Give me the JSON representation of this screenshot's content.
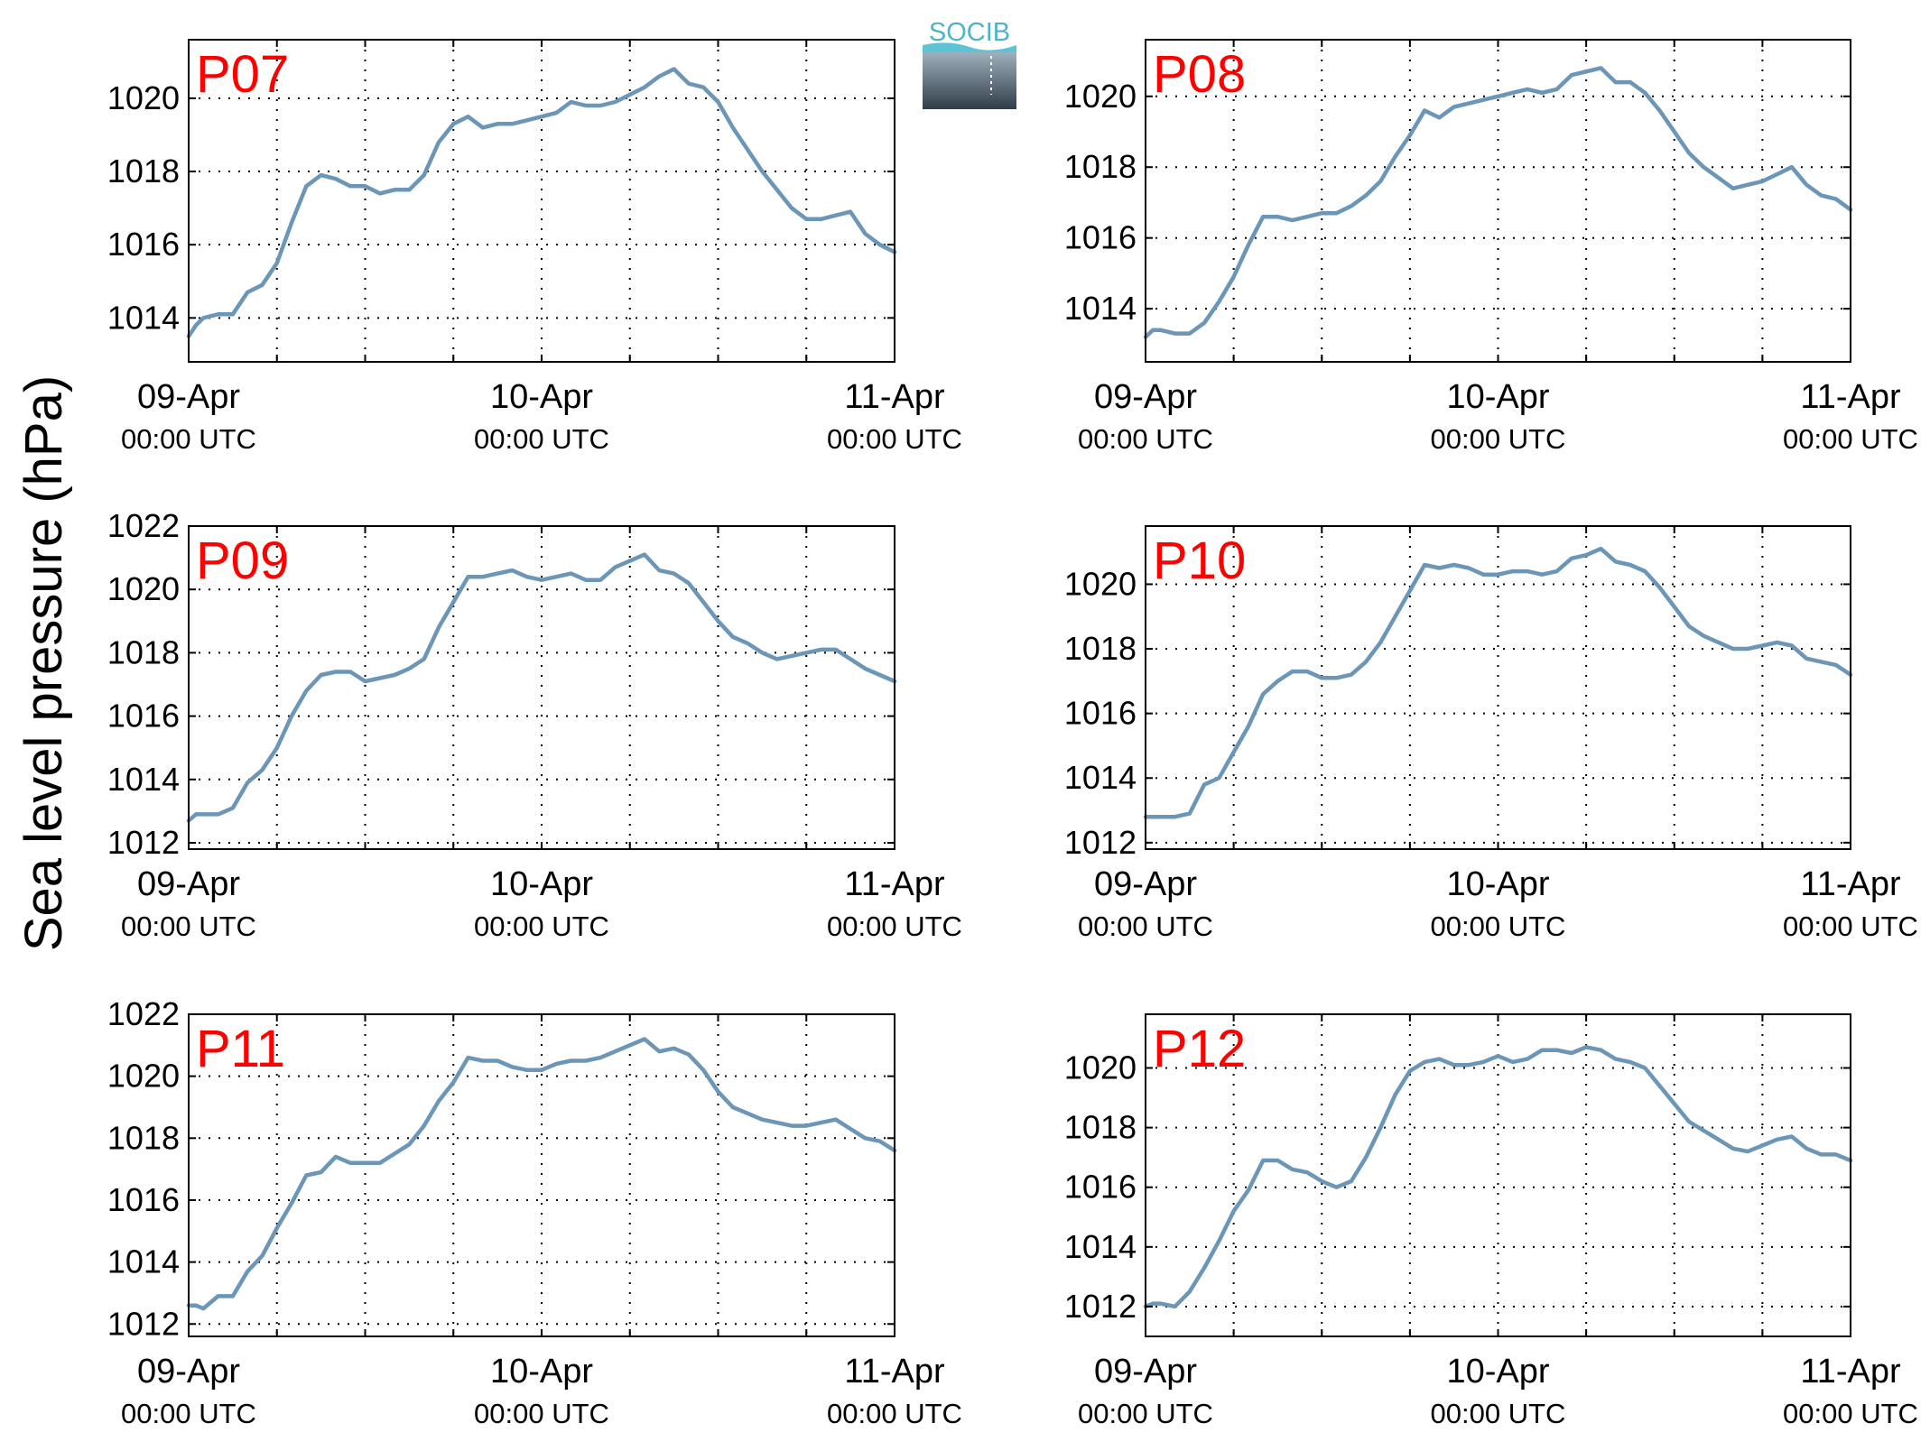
{
  "figure": {
    "ylabel": "Sea level pressure (hPa)",
    "logo_text": "SOCIB",
    "colors": {
      "line": "#6b96b7",
      "title": "#ff0000",
      "grid": "#000000"
    }
  },
  "chart_data": [
    {
      "type": "line",
      "title": "P07",
      "x_ticks": [
        {
          "line1": "09-Apr",
          "line2": "00:00 UTC"
        },
        {
          "line1": "10-Apr",
          "line2": "00:00 UTC"
        },
        {
          "line1": "11-Apr",
          "line2": "00:00 UTC"
        }
      ],
      "x_range_hours": [
        0,
        48
      ],
      "ylim": [
        1012.8,
        1021.6
      ],
      "y_ticks": [
        1014,
        1016,
        1018,
        1020
      ],
      "grid": true,
      "x": [
        0,
        0.5,
        1,
        2,
        3,
        4,
        5,
        6,
        7,
        8,
        9,
        10,
        11,
        12,
        13,
        14,
        15,
        16,
        17,
        18,
        19,
        20,
        21,
        22,
        23,
        24,
        25,
        26,
        27,
        28,
        29,
        30,
        31,
        32,
        33,
        34,
        35,
        36,
        37,
        38,
        39,
        40,
        41,
        42,
        43,
        44,
        45,
        46,
        47,
        48
      ],
      "y": [
        1013.5,
        1013.8,
        1014.0,
        1014.1,
        1014.1,
        1014.7,
        1014.9,
        1015.5,
        1016.6,
        1017.6,
        1017.9,
        1017.8,
        1017.6,
        1017.6,
        1017.4,
        1017.5,
        1017.5,
        1017.9,
        1018.8,
        1019.3,
        1019.5,
        1019.2,
        1019.3,
        1019.3,
        1019.4,
        1019.5,
        1019.6,
        1019.9,
        1019.8,
        1019.8,
        1019.9,
        1020.1,
        1020.3,
        1020.6,
        1020.8,
        1020.4,
        1020.3,
        1019.9,
        1019.2,
        1018.6,
        1018.0,
        1017.5,
        1017.0,
        1016.7,
        1016.7,
        1016.8,
        1016.9,
        1016.3,
        1016.0,
        1015.8
      ]
    },
    {
      "type": "line",
      "title": "P08",
      "x_ticks": [
        {
          "line1": "09-Apr",
          "line2": "00:00 UTC"
        },
        {
          "line1": "10-Apr",
          "line2": "00:00 UTC"
        },
        {
          "line1": "11-Apr",
          "line2": "00:00 UTC"
        }
      ],
      "x_range_hours": [
        0,
        48
      ],
      "ylim": [
        1012.5,
        1021.6
      ],
      "y_ticks": [
        1014,
        1016,
        1018,
        1020
      ],
      "grid": true,
      "x": [
        0,
        0.5,
        1,
        2,
        3,
        4,
        5,
        6,
        7,
        8,
        9,
        10,
        11,
        12,
        13,
        14,
        15,
        16,
        17,
        18,
        19,
        20,
        21,
        22,
        23,
        24,
        25,
        26,
        27,
        28,
        29,
        30,
        31,
        32,
        33,
        34,
        35,
        36,
        37,
        38,
        39,
        40,
        41,
        42,
        43,
        44,
        45,
        46,
        47,
        48
      ],
      "y": [
        1013.2,
        1013.4,
        1013.4,
        1013.3,
        1013.3,
        1013.6,
        1014.2,
        1014.9,
        1015.8,
        1016.6,
        1016.6,
        1016.5,
        1016.6,
        1016.7,
        1016.7,
        1016.9,
        1017.2,
        1017.6,
        1018.3,
        1018.9,
        1019.6,
        1019.4,
        1019.7,
        1019.8,
        1019.9,
        1020.0,
        1020.1,
        1020.2,
        1020.1,
        1020.2,
        1020.6,
        1020.7,
        1020.8,
        1020.4,
        1020.4,
        1020.1,
        1019.6,
        1019.0,
        1018.4,
        1018.0,
        1017.7,
        1017.4,
        1017.5,
        1017.6,
        1017.8,
        1018.0,
        1017.5,
        1017.2,
        1017.1,
        1016.8
      ]
    },
    {
      "type": "line",
      "title": "P09",
      "x_ticks": [
        {
          "line1": "09-Apr",
          "line2": "00:00 UTC"
        },
        {
          "line1": "10-Apr",
          "line2": "00:00 UTC"
        },
        {
          "line1": "11-Apr",
          "line2": "00:00 UTC"
        }
      ],
      "x_range_hours": [
        0,
        48
      ],
      "ylim": [
        1011.8,
        1022.0
      ],
      "y_ticks": [
        1012,
        1014,
        1016,
        1018,
        1020,
        1022
      ],
      "grid": true,
      "x": [
        0,
        0.5,
        1,
        2,
        3,
        4,
        5,
        6,
        7,
        8,
        9,
        10,
        11,
        12,
        13,
        14,
        15,
        16,
        17,
        18,
        19,
        20,
        21,
        22,
        23,
        24,
        25,
        26,
        27,
        28,
        29,
        30,
        31,
        32,
        33,
        34,
        35,
        36,
        37,
        38,
        39,
        40,
        41,
        42,
        43,
        44,
        45,
        46,
        47,
        48
      ],
      "y": [
        1012.7,
        1012.9,
        1012.9,
        1012.9,
        1013.1,
        1013.9,
        1014.3,
        1015.0,
        1016.0,
        1016.8,
        1017.3,
        1017.4,
        1017.4,
        1017.1,
        1017.2,
        1017.3,
        1017.5,
        1017.8,
        1018.8,
        1019.6,
        1020.4,
        1020.4,
        1020.5,
        1020.6,
        1020.4,
        1020.3,
        1020.4,
        1020.5,
        1020.3,
        1020.3,
        1020.7,
        1020.9,
        1021.1,
        1020.6,
        1020.5,
        1020.2,
        1019.6,
        1019.0,
        1018.5,
        1018.3,
        1018.0,
        1017.8,
        1017.9,
        1018.0,
        1018.1,
        1018.1,
        1017.8,
        1017.5,
        1017.3,
        1017.1
      ]
    },
    {
      "type": "line",
      "title": "P10",
      "x_ticks": [
        {
          "line1": "09-Apr",
          "line2": "00:00 UTC"
        },
        {
          "line1": "10-Apr",
          "line2": "00:00 UTC"
        },
        {
          "line1": "11-Apr",
          "line2": "00:00 UTC"
        }
      ],
      "x_range_hours": [
        0,
        48
      ],
      "ylim": [
        1011.8,
        1021.8
      ],
      "y_ticks": [
        1012,
        1014,
        1016,
        1018,
        1020
      ],
      "grid": true,
      "x": [
        0,
        0.5,
        1,
        2,
        3,
        4,
        5,
        6,
        7,
        8,
        9,
        10,
        11,
        12,
        13,
        14,
        15,
        16,
        17,
        18,
        19,
        20,
        21,
        22,
        23,
        24,
        25,
        26,
        27,
        28,
        29,
        30,
        31,
        32,
        33,
        34,
        35,
        36,
        37,
        38,
        39,
        40,
        41,
        42,
        43,
        44,
        45,
        46,
        47,
        48
      ],
      "y": [
        1012.8,
        1012.8,
        1012.8,
        1012.8,
        1012.9,
        1013.8,
        1014.0,
        1014.8,
        1015.6,
        1016.6,
        1017.0,
        1017.3,
        1017.3,
        1017.1,
        1017.1,
        1017.2,
        1017.6,
        1018.2,
        1019.0,
        1019.8,
        1020.6,
        1020.5,
        1020.6,
        1020.5,
        1020.3,
        1020.3,
        1020.4,
        1020.4,
        1020.3,
        1020.4,
        1020.8,
        1020.9,
        1021.1,
        1020.7,
        1020.6,
        1020.4,
        1019.9,
        1019.3,
        1018.7,
        1018.4,
        1018.2,
        1018.0,
        1018.0,
        1018.1,
        1018.2,
        1018.1,
        1017.7,
        1017.6,
        1017.5,
        1017.2
      ]
    },
    {
      "type": "line",
      "title": "P11",
      "x_ticks": [
        {
          "line1": "09-Apr",
          "line2": "00:00 UTC"
        },
        {
          "line1": "10-Apr",
          "line2": "00:00 UTC"
        },
        {
          "line1": "11-Apr",
          "line2": "00:00 UTC"
        }
      ],
      "x_range_hours": [
        0,
        48
      ],
      "ylim": [
        1011.6,
        1022.0
      ],
      "y_ticks": [
        1012,
        1014,
        1016,
        1018,
        1020,
        1022
      ],
      "grid": true,
      "x": [
        0,
        0.5,
        1,
        2,
        3,
        4,
        5,
        6,
        7,
        8,
        9,
        10,
        11,
        12,
        13,
        14,
        15,
        16,
        17,
        18,
        19,
        20,
        21,
        22,
        23,
        24,
        25,
        26,
        27,
        28,
        29,
        30,
        31,
        32,
        33,
        34,
        35,
        36,
        37,
        38,
        39,
        40,
        41,
        42,
        43,
        44,
        45,
        46,
        47,
        48
      ],
      "y": [
        1012.6,
        1012.6,
        1012.5,
        1012.9,
        1012.9,
        1013.7,
        1014.2,
        1015.1,
        1015.9,
        1016.8,
        1016.9,
        1017.4,
        1017.2,
        1017.2,
        1017.2,
        1017.5,
        1017.8,
        1018.4,
        1019.2,
        1019.8,
        1020.6,
        1020.5,
        1020.5,
        1020.3,
        1020.2,
        1020.2,
        1020.4,
        1020.5,
        1020.5,
        1020.6,
        1020.8,
        1021.0,
        1021.2,
        1020.8,
        1020.9,
        1020.7,
        1020.2,
        1019.5,
        1019.0,
        1018.8,
        1018.6,
        1018.5,
        1018.4,
        1018.4,
        1018.5,
        1018.6,
        1018.3,
        1018.0,
        1017.9,
        1017.6
      ]
    },
    {
      "type": "line",
      "title": "P12",
      "x_ticks": [
        {
          "line1": "09-Apr",
          "line2": "00:00 UTC"
        },
        {
          "line1": "10-Apr",
          "line2": "00:00 UTC"
        },
        {
          "line1": "11-Apr",
          "line2": "00:00 UTC"
        }
      ],
      "x_range_hours": [
        0,
        48
      ],
      "ylim": [
        1011.0,
        1021.8
      ],
      "y_ticks": [
        1012,
        1014,
        1016,
        1018,
        1020
      ],
      "grid": true,
      "x": [
        0,
        0.5,
        1,
        2,
        3,
        4,
        5,
        6,
        7,
        8,
        9,
        10,
        11,
        12,
        13,
        14,
        15,
        16,
        17,
        18,
        19,
        20,
        21,
        22,
        23,
        24,
        25,
        26,
        27,
        28,
        29,
        30,
        31,
        32,
        33,
        34,
        35,
        36,
        37,
        38,
        39,
        40,
        41,
        42,
        43,
        44,
        45,
        46,
        47,
        48
      ],
      "y": [
        1012.0,
        1012.1,
        1012.1,
        1012.0,
        1012.5,
        1013.3,
        1014.2,
        1015.2,
        1015.9,
        1016.9,
        1016.9,
        1016.6,
        1016.5,
        1016.2,
        1016.0,
        1016.2,
        1017.0,
        1018.0,
        1019.1,
        1019.9,
        1020.2,
        1020.3,
        1020.1,
        1020.1,
        1020.2,
        1020.4,
        1020.2,
        1020.3,
        1020.6,
        1020.6,
        1020.5,
        1020.7,
        1020.6,
        1020.3,
        1020.2,
        1020.0,
        1019.4,
        1018.8,
        1018.2,
        1017.9,
        1017.6,
        1017.3,
        1017.2,
        1017.4,
        1017.6,
        1017.7,
        1017.3,
        1017.1,
        1017.1,
        1016.9
      ]
    }
  ]
}
